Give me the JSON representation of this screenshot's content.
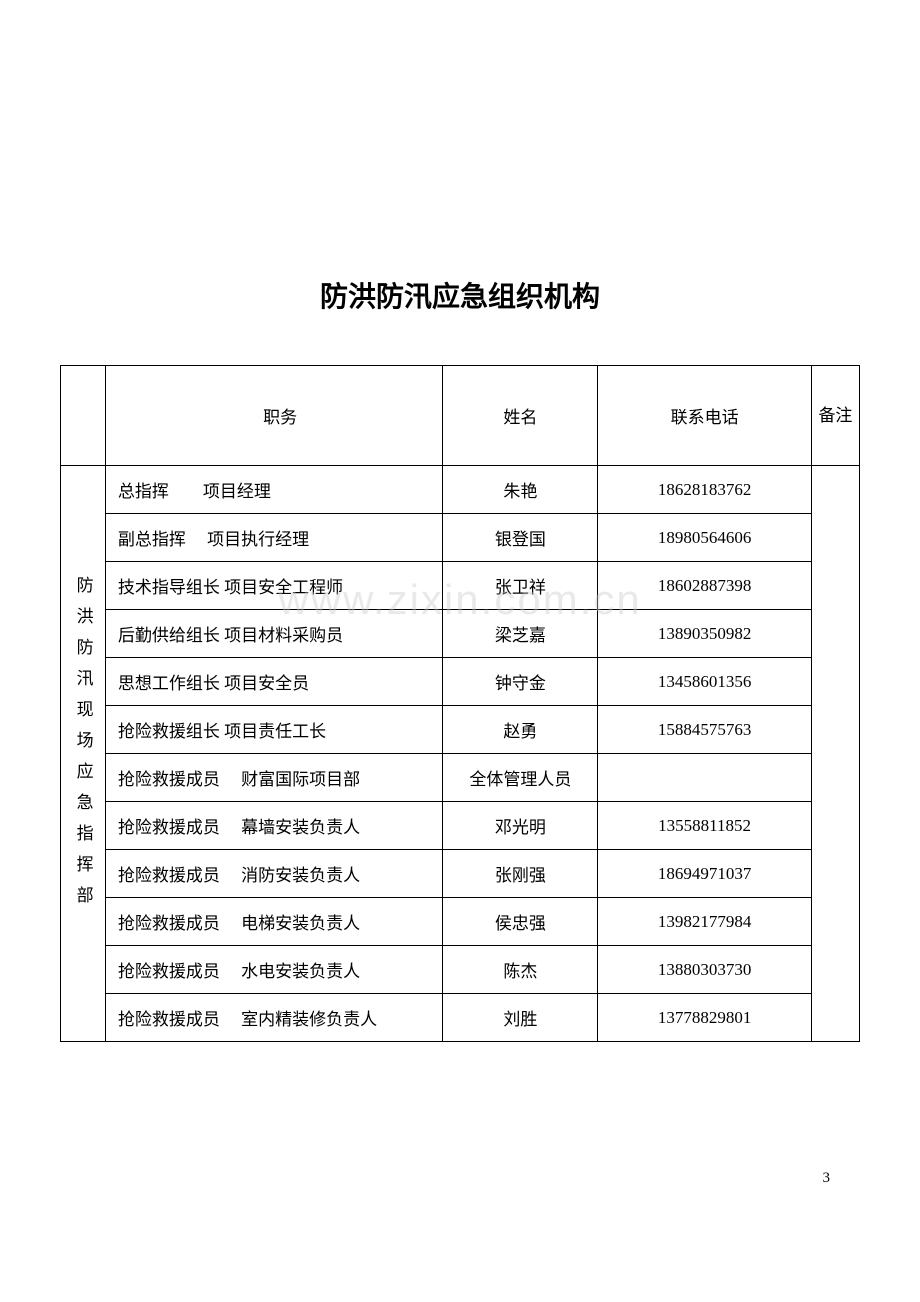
{
  "page": {
    "title": "防洪防汛应急组织机构",
    "page_number": "3",
    "watermark": "www.zixin.com.cn"
  },
  "table": {
    "headers": {
      "category": "",
      "position": "职务",
      "name": "姓名",
      "phone": "联系电话",
      "remarks": "备注"
    },
    "category_label": "防洪防汛现场应急指挥部",
    "rows": [
      {
        "position": "总指挥　　项目经理",
        "name": "朱艳",
        "phone": "18628183762",
        "remarks": ""
      },
      {
        "position": "副总指挥　 项目执行经理",
        "name": "银登国",
        "phone": "18980564606",
        "remarks": ""
      },
      {
        "position": "技术指导组长  项目安全工程师",
        "name": "张卫祥",
        "phone": "18602887398",
        "remarks": ""
      },
      {
        "position": "后勤供给组长  项目材料采购员",
        "name": "梁芝嘉",
        "phone": "13890350982",
        "remarks": ""
      },
      {
        "position": "思想工作组长  项目安全员",
        "name": "钟守金",
        "phone": "13458601356",
        "remarks": ""
      },
      {
        "position": "抢险救援组长  项目责任工长",
        "name": "赵勇",
        "phone": "15884575763",
        "remarks": ""
      },
      {
        "position": "抢险救援成员　 财富国际项目部",
        "name": "全体管理人员",
        "phone": "",
        "remarks": ""
      },
      {
        "position": "抢险救援成员　 幕墙安装负责人",
        "name": "邓光明",
        "phone": "13558811852",
        "remarks": ""
      },
      {
        "position": "抢险救援成员　 消防安装负责人",
        "name": "张刚强",
        "phone": "18694971037",
        "remarks": ""
      },
      {
        "position": "抢险救援成员　 电梯安装负责人",
        "name": "侯忠强",
        "phone": "13982177984",
        "remarks": ""
      },
      {
        "position": "抢险救援成员　 水电安装负责人",
        "name": "陈杰",
        "phone": "13880303730",
        "remarks": ""
      },
      {
        "position": "抢险救援成员　 室内精装修负责人",
        "name": "刘胜",
        "phone": "13778829801",
        "remarks": ""
      }
    ]
  },
  "styling": {
    "background_color": "#ffffff",
    "text_color": "#000000",
    "border_color": "#000000",
    "title_fontsize": 28,
    "cell_fontsize": 17,
    "watermark_color": "rgba(200, 200, 200, 0.4)"
  }
}
